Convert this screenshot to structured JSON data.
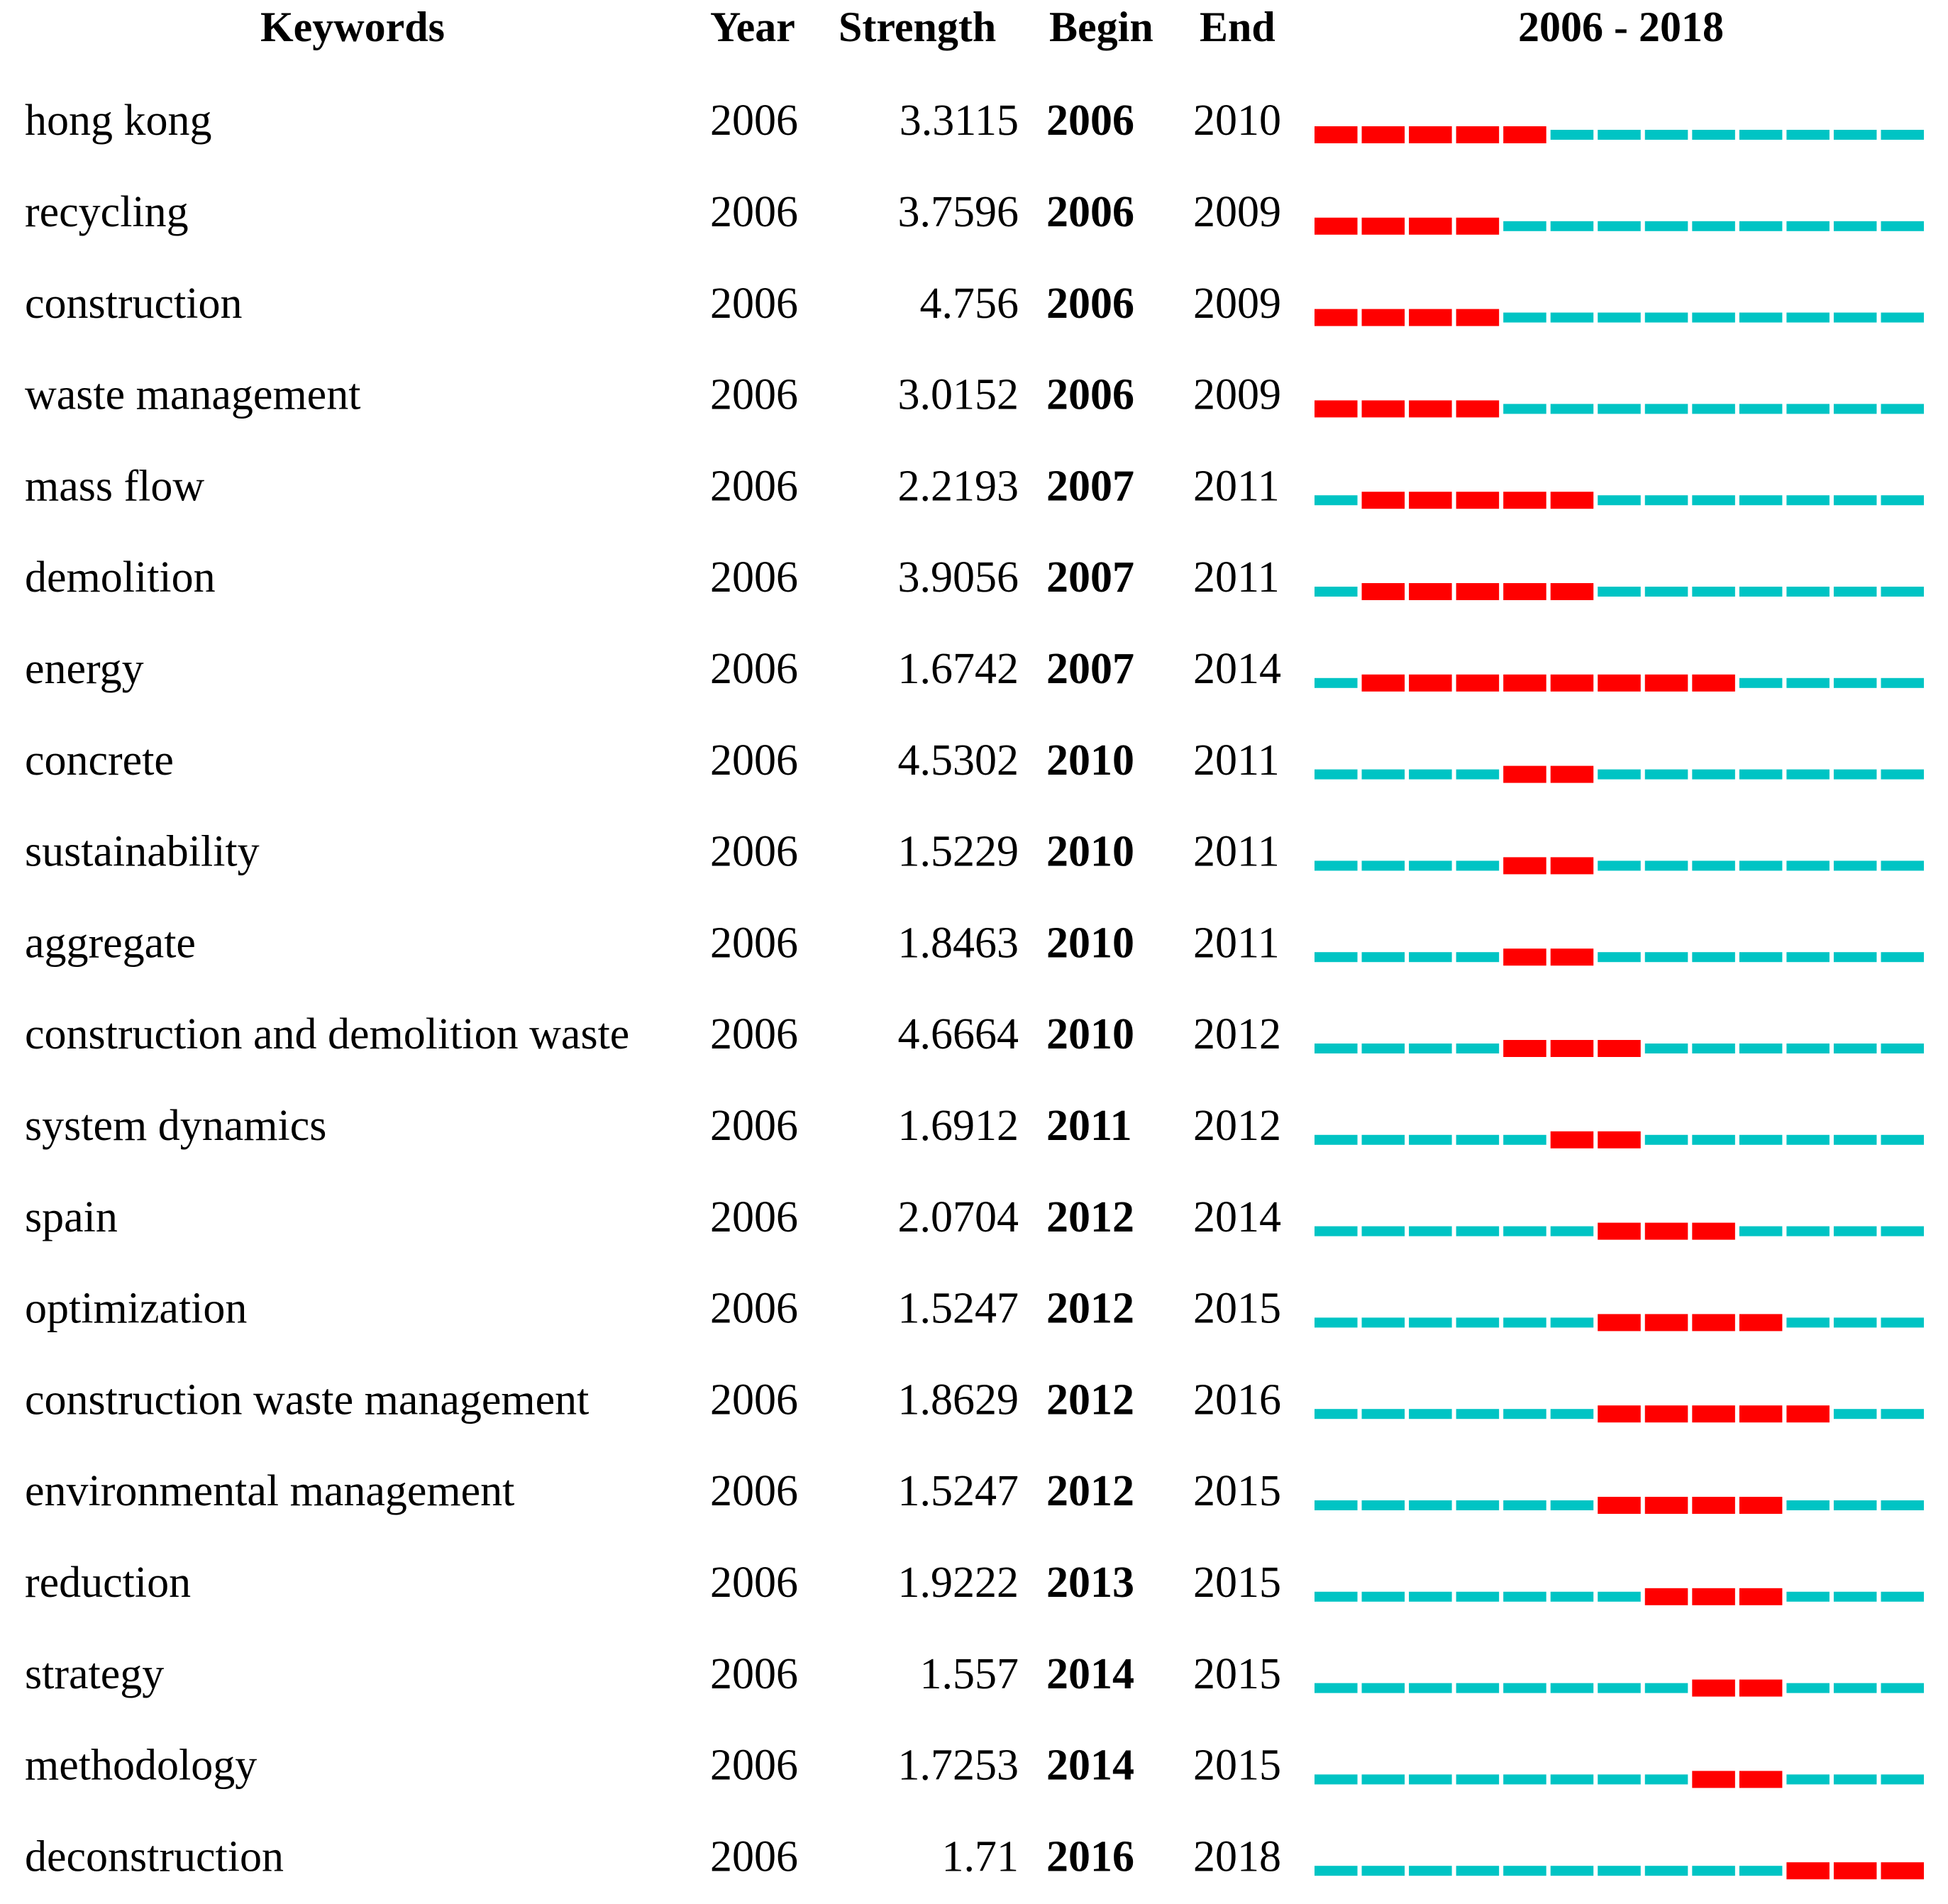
{
  "header": {
    "keywords": "Keywords",
    "year": "Year",
    "strength": "Strength",
    "begin": "Begin",
    "end": "End",
    "timeline": "2006 - 2018"
  },
  "timeline": {
    "start": 2006,
    "end": 2018
  },
  "colors": {
    "burst": "#ff0000",
    "base": "#00c4c4"
  },
  "rows": [
    {
      "keyword": "hong kong",
      "year": 2006,
      "strength": "3.3115",
      "begin": 2006,
      "end": 2010
    },
    {
      "keyword": "recycling",
      "year": 2006,
      "strength": "3.7596",
      "begin": 2006,
      "end": 2009
    },
    {
      "keyword": "construction",
      "year": 2006,
      "strength": "4.756",
      "begin": 2006,
      "end": 2009
    },
    {
      "keyword": "waste management",
      "year": 2006,
      "strength": "3.0152",
      "begin": 2006,
      "end": 2009
    },
    {
      "keyword": "mass flow",
      "year": 2006,
      "strength": "2.2193",
      "begin": 2007,
      "end": 2011
    },
    {
      "keyword": "demolition",
      "year": 2006,
      "strength": "3.9056",
      "begin": 2007,
      "end": 2011
    },
    {
      "keyword": "energy",
      "year": 2006,
      "strength": "1.6742",
      "begin": 2007,
      "end": 2014
    },
    {
      "keyword": "concrete",
      "year": 2006,
      "strength": "4.5302",
      "begin": 2010,
      "end": 2011
    },
    {
      "keyword": "sustainability",
      "year": 2006,
      "strength": "1.5229",
      "begin": 2010,
      "end": 2011
    },
    {
      "keyword": "aggregate",
      "year": 2006,
      "strength": "1.8463",
      "begin": 2010,
      "end": 2011
    },
    {
      "keyword": "construction and demolition waste",
      "year": 2006,
      "strength": "4.6664",
      "begin": 2010,
      "end": 2012
    },
    {
      "keyword": "system dynamics",
      "year": 2006,
      "strength": "1.6912",
      "begin": 2011,
      "end": 2012
    },
    {
      "keyword": "spain",
      "year": 2006,
      "strength": "2.0704",
      "begin": 2012,
      "end": 2014
    },
    {
      "keyword": "optimization",
      "year": 2006,
      "strength": "1.5247",
      "begin": 2012,
      "end": 2015
    },
    {
      "keyword": "construction waste management",
      "year": 2006,
      "strength": "1.8629",
      "begin": 2012,
      "end": 2016
    },
    {
      "keyword": "environmental management",
      "year": 2006,
      "strength": "1.5247",
      "begin": 2012,
      "end": 2015
    },
    {
      "keyword": "reduction",
      "year": 2006,
      "strength": "1.9222",
      "begin": 2013,
      "end": 2015
    },
    {
      "keyword": "strategy",
      "year": 2006,
      "strength": "1.557",
      "begin": 2014,
      "end": 2015
    },
    {
      "keyword": "methodology",
      "year": 2006,
      "strength": "1.7253",
      "begin": 2014,
      "end": 2015
    },
    {
      "keyword": "deconstruction",
      "year": 2006,
      "strength": "1.71",
      "begin": 2016,
      "end": 2018
    }
  ]
}
